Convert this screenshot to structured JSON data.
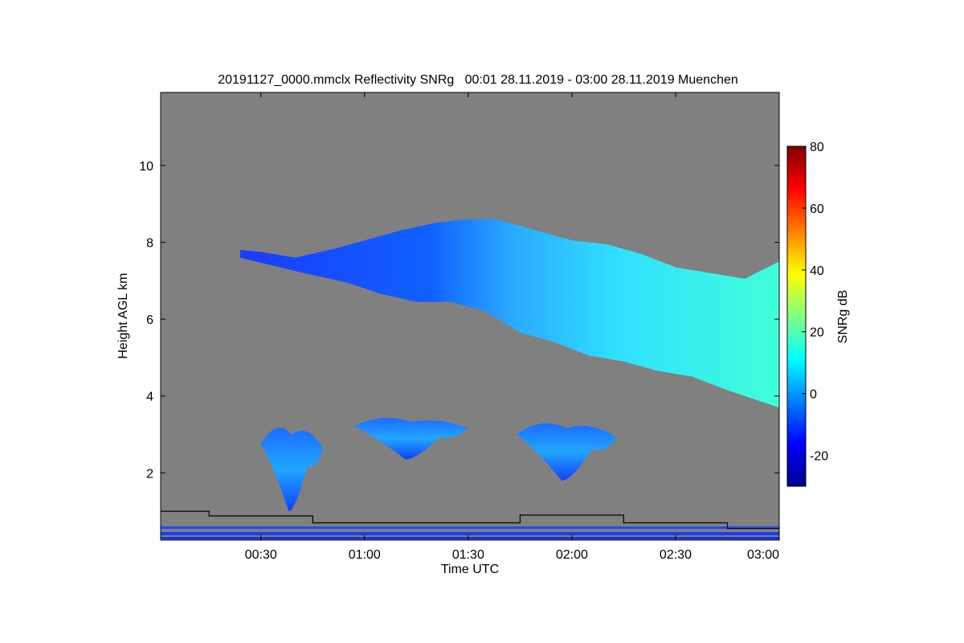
{
  "chart_data": {
    "type": "heatmap",
    "title": "20191127_0000.mmclx Reflectivity SNRg   00:01 28.11.2019 - 03:00 28.11.2019 Muenchen",
    "xlabel": "Time UTC",
    "ylabel": "Height AGL km",
    "x_unit": "minutes after 00:00 UTC",
    "xlim": [
      1,
      180
    ],
    "ylim": [
      0.25,
      11.9
    ],
    "x_tick_values": [
      30,
      60,
      90,
      120,
      150,
      180
    ],
    "x_tick_labels": [
      "00:30",
      "01:00",
      "01:30",
      "02:00",
      "02:30",
      "03:00"
    ],
    "y_ticks": [
      2,
      4,
      6,
      8,
      10
    ],
    "background_color": "#808080",
    "colorbar": {
      "label": "SNRg dB",
      "range": [
        -30,
        80
      ],
      "ticks": [
        -20,
        0,
        20,
        40,
        60,
        80
      ],
      "colormap": "jet",
      "stops": [
        "#00008f",
        "#0000ff",
        "#0080ff",
        "#00ffff",
        "#80ff80",
        "#ffff00",
        "#ff8000",
        "#ff0000",
        "#800000"
      ]
    },
    "regions": [
      {
        "name": "upper cloud layer",
        "snr_db_typical": [
          -10,
          20
        ],
        "top_boundary": [
          [
            24,
            7.8
          ],
          [
            30,
            7.75
          ],
          [
            40,
            7.6
          ],
          [
            52,
            7.85
          ],
          [
            60,
            8.05
          ],
          [
            70,
            8.3
          ],
          [
            80,
            8.5
          ],
          [
            90,
            8.6
          ],
          [
            98,
            8.6
          ],
          [
            110,
            8.3
          ],
          [
            120,
            8.05
          ],
          [
            130,
            7.95
          ],
          [
            140,
            7.7
          ],
          [
            150,
            7.35
          ],
          [
            160,
            7.2
          ],
          [
            170,
            7.05
          ],
          [
            180,
            7.5
          ]
        ],
        "base_boundary": [
          [
            24,
            7.6
          ],
          [
            40,
            7.25
          ],
          [
            55,
            6.95
          ],
          [
            65,
            6.65
          ],
          [
            75,
            6.45
          ],
          [
            85,
            6.45
          ],
          [
            95,
            6.2
          ],
          [
            105,
            5.65
          ],
          [
            115,
            5.4
          ],
          [
            125,
            5.05
          ],
          [
            135,
            4.9
          ],
          [
            145,
            4.65
          ],
          [
            155,
            4.5
          ],
          [
            165,
            4.15
          ],
          [
            180,
            3.7
          ]
        ]
      },
      {
        "name": "mid-level patch 1",
        "snr_db_typical": [
          -10,
          10
        ],
        "time": [
          30,
          48
        ],
        "height": [
          1.0,
          3.35
        ]
      },
      {
        "name": "mid-level patch 2",
        "snr_db_typical": [
          -15,
          5
        ],
        "time": [
          57,
          90
        ],
        "height": [
          2.35,
          3.5
        ]
      },
      {
        "name": "mid-level patch 3",
        "snr_db_typical": [
          -15,
          5
        ],
        "time": [
          104,
          133
        ],
        "height": [
          1.8,
          3.4
        ]
      }
    ],
    "reference_line": {
      "name": "step line",
      "color": "#000000",
      "points": [
        [
          1,
          1.0
        ],
        [
          15,
          1.0
        ],
        [
          15,
          0.88
        ],
        [
          45,
          0.88
        ],
        [
          45,
          0.7
        ],
        [
          105,
          0.7
        ],
        [
          105,
          0.9
        ],
        [
          135,
          0.9
        ],
        [
          135,
          0.7
        ],
        [
          165,
          0.7
        ],
        [
          165,
          0.55
        ],
        [
          180,
          0.55
        ]
      ]
    },
    "grid": false,
    "legend": "colorbar-right"
  }
}
